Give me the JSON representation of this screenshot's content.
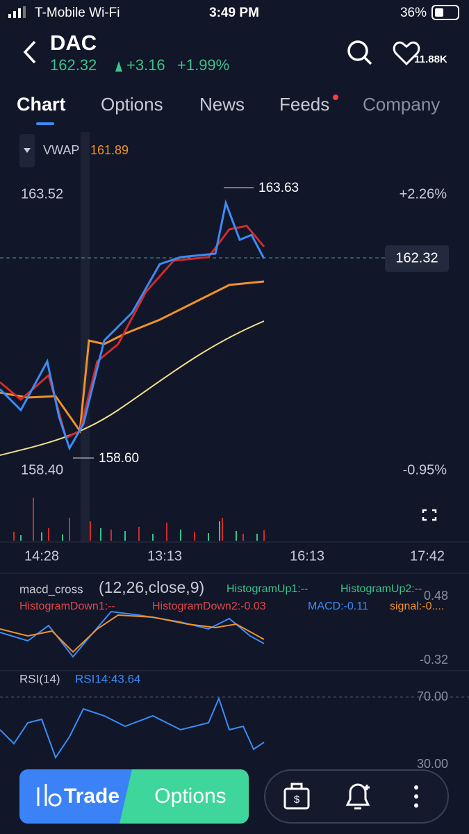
{
  "status_bar": {
    "carrier": "T-Mobile Wi-Fi",
    "time": "3:49 PM",
    "battery": "36%"
  },
  "header": {
    "symbol": "DAC",
    "price": "162.32",
    "change": "+3.16",
    "change_pct": "+1.99%",
    "watchers": "11.88K"
  },
  "tabs": [
    "Chart",
    "Options",
    "News",
    "Feeds",
    "Company"
  ],
  "indicator": {
    "name": "VWAP",
    "value": "161.89"
  },
  "chart": {
    "high_label": "163.52",
    "low_label": "158.40",
    "high_pct": "+2.26%",
    "low_pct": "-0.95%",
    "peak": "163.63",
    "trough": "158.60",
    "last": "162.32",
    "times": [
      "14:28",
      "13:13",
      "16:13",
      "17:42"
    ]
  },
  "macd": {
    "name": "macd_cross",
    "params": "(12,26,close,9)",
    "up1": "HistogramUp1:--",
    "up2": "HistogramUp2:--",
    "down1": "HistogramDown1:--",
    "down2": "HistogramDown2:-0.03",
    "macd": "MACD:-0.11",
    "signal": "signal:-0....",
    "top": "0.48",
    "bottom": "-0.32"
  },
  "rsi": {
    "name": "RSI(14)",
    "value": "RSI14:43.64",
    "top": "70.00",
    "bottom": "30.00"
  },
  "bottom_bar": {
    "trade": "Trade",
    "options": "Options"
  }
}
